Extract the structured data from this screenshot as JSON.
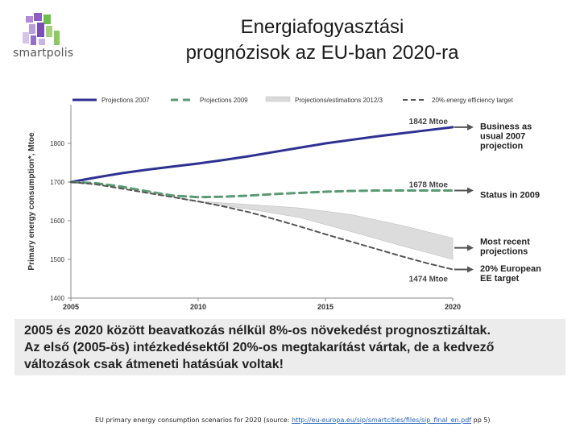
{
  "logo": {
    "text": "smartpolis"
  },
  "title": {
    "line1": "Energiafogyasztási",
    "line2": "prognózisok az EU-ban 2020-ra"
  },
  "colors": {
    "projections2007": "#2e3192",
    "projections2009": "#5a9a72",
    "band": "#d9d9d9",
    "target": "#555555",
    "arrow": "#555555"
  },
  "chart_data": {
    "type": "line",
    "ylabel": "Primary energy consumption*, Mtoe",
    "ylim": [
      1400,
      1900
    ],
    "xlim": [
      2005,
      2020
    ],
    "x_ticks": [
      "2005",
      "2010",
      "2015",
      "2020"
    ],
    "y_ticks": [
      "1400",
      "1500",
      "1600",
      "1700",
      "1800"
    ],
    "legend_position": "top",
    "series": [
      {
        "name": "Projections 2007",
        "style": "solid",
        "x": [
          2005,
          2006,
          2007,
          2008,
          2009,
          2010,
          2011,
          2012,
          2013,
          2014,
          2015,
          2016,
          2017,
          2018,
          2019,
          2020
        ],
        "values": [
          1700,
          1712,
          1723,
          1732,
          1740,
          1748,
          1757,
          1767,
          1778,
          1789,
          1800,
          1809,
          1818,
          1826,
          1834,
          1842
        ]
      },
      {
        "name": "Projections 2009",
        "style": "dashed",
        "x": [
          2005,
          2006,
          2007,
          2008,
          2009,
          2010,
          2011,
          2012,
          2013,
          2014,
          2015,
          2016,
          2017,
          2018,
          2019,
          2020
        ],
        "values": [
          1700,
          1697,
          1688,
          1676,
          1665,
          1661,
          1662,
          1665,
          1669,
          1672,
          1675,
          1677,
          1678,
          1678,
          1678,
          1678
        ]
      },
      {
        "name": "Projections/estimations 2012/3",
        "style": "band",
        "x": [
          2008,
          2010,
          2012,
          2014,
          2016,
          2018,
          2020
        ],
        "upper": [
          1675,
          1650,
          1642,
          1633,
          1616,
          1588,
          1555
        ],
        "lower": [
          1675,
          1648,
          1630,
          1608,
          1572,
          1535,
          1500
        ]
      },
      {
        "name": "20% energy efficiency target",
        "style": "dotted",
        "x": [
          2005,
          2006,
          2007,
          2008,
          2009,
          2010,
          2011,
          2012,
          2013,
          2014,
          2015,
          2016,
          2017,
          2018,
          2019,
          2020
        ],
        "values": [
          1700,
          1694,
          1683,
          1672,
          1661,
          1650,
          1637,
          1622,
          1604,
          1585,
          1565,
          1546,
          1527,
          1508,
          1490,
          1474
        ]
      }
    ],
    "value_labels": [
      "1842 Mtoe",
      "1678 Mtoe",
      "1474 Mtoe"
    ],
    "annotations": [
      {
        "lines": [
          "Business as",
          "usual 2007",
          "projection"
        ],
        "y": 1842
      },
      {
        "lines": [
          "Status in 2009"
        ],
        "y": 1678
      },
      {
        "lines": [
          "Most recent",
          "projections"
        ],
        "y": 1530
      },
      {
        "lines": [
          "20% European",
          "EE target"
        ],
        "y": 1474
      }
    ]
  },
  "note": {
    "line1": "2005 és 2020 között beavatkozás nélkül 8%-os növekedést  prognosztizáltak.",
    "line2": "Az első (2005-ös) intézkedésektől 20%-os megtakarítást vártak, de a kedvező",
    "line3": "változások csak átmeneti hatásúak voltak!"
  },
  "footer": {
    "prefix": "EU primary energy consumption scenarios for 2020 (source: ",
    "link": "http://eu-europa.eu/sip/smartcities/files/sip_final_en.pdf",
    "suffix": " pp 5)"
  }
}
